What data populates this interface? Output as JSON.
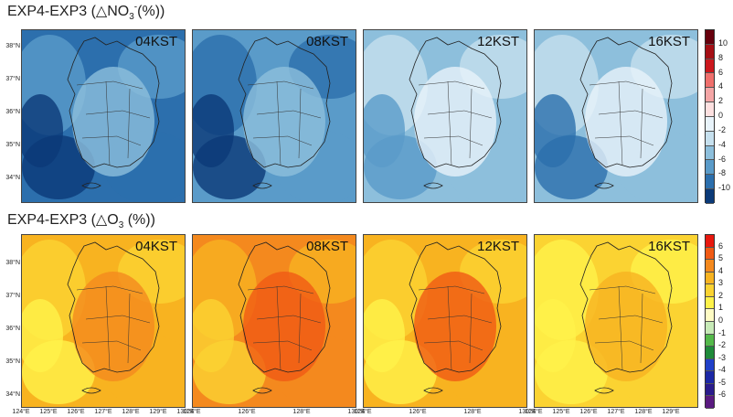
{
  "figure": {
    "no3_title_pre": "EXP4-EXP3 (△NO",
    "no3_title_sub": "3",
    "no3_title_sup": "-",
    "no3_title_post": "(%))",
    "o3_title_pre": "EXP4-EXP3 (△O",
    "o3_title_sub": "3",
    "o3_title_post": " (%))"
  },
  "panels": {
    "no3": [
      "04KST",
      "08KST",
      "12KST",
      "16KST"
    ],
    "o3": [
      "04KST",
      "08KST",
      "12KST",
      "16KST"
    ]
  },
  "lat_ticks": [
    "38°N",
    "37°N",
    "36°N",
    "35°N",
    "34°N"
  ],
  "lon_ticks": [
    "124°E",
    "125°E",
    "126°E",
    "127°E",
    "128°E",
    "129°E",
    "130°E"
  ],
  "no3_colorbar": {
    "labels": [
      "10",
      "8",
      "6",
      "4",
      "2",
      "0",
      "-2",
      "-4",
      "-6",
      "-8",
      "-10"
    ],
    "colors": [
      "#67000d",
      "#a50f15",
      "#cb181d",
      "#ef6f6c",
      "#f4a6a6",
      "#fde0e0",
      "#e8f3fa",
      "#c6e0ee",
      "#8dbfdc",
      "#5a9bc9",
      "#2c6fad",
      "#0b3a78"
    ]
  },
  "o3_colorbar": {
    "labels": [
      "6",
      "5",
      "4",
      "3",
      "2",
      "1",
      "0",
      "-1",
      "-2",
      "-3",
      "-4",
      "-5",
      "-6"
    ],
    "colors": [
      "#e8180e",
      "#f05a14",
      "#f4891e",
      "#f8b320",
      "#fbd332",
      "#fff24a",
      "#fffcc4",
      "#c7eab7",
      "#54b94a",
      "#1f8a3a",
      "#2040c8",
      "#1c28a6",
      "#2a1c8c",
      "#5a1a80"
    ]
  },
  "colors": {
    "no3_base": "#6ea8d6",
    "o3_base": "#fbd332"
  }
}
